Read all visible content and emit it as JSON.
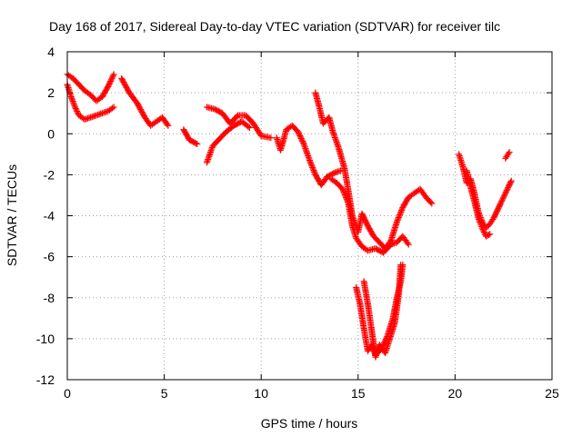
{
  "chart_data": {
    "type": "scatter",
    "title": "Day 168 of 2017, Sidereal Day-to-day VTEC variation (SDTVAR) for receiver tilc",
    "xlabel": "GPS time / hours",
    "ylabel": "SDTVAR / TECUs",
    "xlim": [
      0,
      25
    ],
    "ylim": [
      -12,
      4
    ],
    "xticks": [
      0,
      5,
      10,
      15,
      20,
      25
    ],
    "yticks": [
      4,
      2,
      0,
      -2,
      -4,
      -6,
      -8,
      -10,
      -12
    ],
    "grid": true,
    "marker": "plus",
    "color": "#ff0000",
    "series": [
      {
        "segments": [
          [
            [
              0.0,
              2.9
            ],
            [
              0.3,
              2.7
            ],
            [
              0.6,
              2.4
            ],
            [
              0.9,
              2.1
            ],
            [
              1.2,
              1.9
            ],
            [
              1.5,
              1.6
            ],
            [
              1.8,
              1.8
            ],
            [
              2.1,
              2.3
            ],
            [
              2.4,
              2.9
            ]
          ],
          [
            [
              0.0,
              2.4
            ],
            [
              0.2,
              1.8
            ],
            [
              0.4,
              1.3
            ],
            [
              0.6,
              0.9
            ],
            [
              0.9,
              0.7
            ],
            [
              1.2,
              0.8
            ],
            [
              1.5,
              0.9
            ],
            [
              1.8,
              1.0
            ],
            [
              2.1,
              1.1
            ],
            [
              2.4,
              1.3
            ]
          ],
          [
            [
              2.8,
              2.7
            ],
            [
              3.2,
              2.0
            ],
            [
              3.6,
              1.5
            ],
            [
              4.0,
              0.8
            ],
            [
              4.3,
              0.4
            ],
            [
              4.6,
              0.6
            ],
            [
              4.9,
              0.8
            ],
            [
              5.2,
              0.4
            ]
          ],
          [
            [
              6.0,
              0.2
            ],
            [
              6.3,
              -0.3
            ],
            [
              6.7,
              -0.5
            ]
          ],
          [
            [
              7.2,
              1.3
            ],
            [
              7.6,
              1.2
            ],
            [
              8.0,
              1.0
            ],
            [
              8.4,
              0.5
            ],
            [
              8.8,
              0.9
            ],
            [
              9.2,
              0.9
            ],
            [
              9.6,
              0.5
            ],
            [
              10.0,
              -0.1
            ],
            [
              10.5,
              -0.2
            ]
          ],
          [
            [
              7.2,
              -1.4
            ],
            [
              7.5,
              -0.6
            ],
            [
              7.9,
              -0.2
            ],
            [
              8.2,
              0.1
            ],
            [
              8.6,
              0.4
            ],
            [
              9.0,
              0.6
            ],
            [
              9.4,
              0.3
            ]
          ],
          [
            [
              10.8,
              -0.2
            ],
            [
              11.0,
              -0.8
            ],
            [
              11.3,
              0.2
            ],
            [
              11.6,
              0.4
            ],
            [
              11.9,
              0.1
            ],
            [
              12.2,
              -0.5
            ],
            [
              12.5,
              -1.3
            ],
            [
              12.8,
              -2.0
            ],
            [
              13.1,
              -2.5
            ],
            [
              13.4,
              -2.1
            ],
            [
              13.8,
              -1.9
            ],
            [
              14.1,
              -1.8
            ]
          ],
          [
            [
              12.8,
              2.0
            ],
            [
              13.0,
              1.3
            ],
            [
              13.2,
              0.5
            ],
            [
              13.5,
              0.8
            ],
            [
              13.7,
              0.1
            ],
            [
              14.0,
              -0.7
            ],
            [
              14.3,
              -1.7
            ],
            [
              14.5,
              -2.8
            ],
            [
              14.7,
              -4.0
            ],
            [
              15.0,
              -4.8
            ],
            [
              15.2,
              -3.9
            ],
            [
              15.5,
              -4.5
            ],
            [
              15.8,
              -5.0
            ],
            [
              16.1,
              -5.3
            ],
            [
              16.4,
              -5.6
            ],
            [
              16.7,
              -5.2
            ],
            [
              17.0,
              -4.3
            ],
            [
              17.3,
              -3.6
            ],
            [
              17.6,
              -3.1
            ],
            [
              17.9,
              -2.9
            ],
            [
              18.2,
              -2.7
            ],
            [
              18.5,
              -3.1
            ],
            [
              18.8,
              -3.4
            ]
          ],
          [
            [
              13.6,
              -2.2
            ],
            [
              13.9,
              -2.4
            ],
            [
              14.2,
              -2.7
            ],
            [
              14.5,
              -3.4
            ],
            [
              14.7,
              -4.5
            ],
            [
              14.9,
              -5.1
            ],
            [
              15.2,
              -5.5
            ],
            [
              15.5,
              -5.7
            ],
            [
              15.9,
              -5.6
            ],
            [
              16.3,
              -5.8
            ],
            [
              16.7,
              -5.4
            ],
            [
              17.0,
              -5.3
            ],
            [
              17.3,
              -5.0
            ],
            [
              17.6,
              -5.4
            ]
          ],
          [
            [
              14.9,
              -7.5
            ],
            [
              15.1,
              -8.3
            ],
            [
              15.3,
              -9.5
            ],
            [
              15.5,
              -10.6
            ],
            [
              15.7,
              -10.3
            ],
            [
              15.9,
              -10.8
            ],
            [
              16.2,
              -10.5
            ],
            [
              16.5,
              -9.9
            ],
            [
              16.8,
              -9.0
            ],
            [
              17.0,
              -8.0
            ],
            [
              17.2,
              -7.2
            ],
            [
              17.3,
              -6.4
            ]
          ],
          [
            [
              15.3,
              -7.2
            ],
            [
              15.5,
              -8.3
            ],
            [
              15.7,
              -9.6
            ],
            [
              15.9,
              -10.9
            ],
            [
              16.1,
              -10.3
            ],
            [
              16.4,
              -10.7
            ],
            [
              16.6,
              -10.1
            ],
            [
              16.9,
              -9.2
            ],
            [
              17.1,
              -7.8
            ],
            [
              17.2,
              -6.4
            ]
          ],
          [
            [
              20.2,
              -1.0
            ],
            [
              20.4,
              -1.6
            ],
            [
              20.6,
              -2.4
            ],
            [
              20.8,
              -2.2
            ],
            [
              21.0,
              -2.9
            ],
            [
              21.2,
              -3.8
            ],
            [
              21.4,
              -4.3
            ],
            [
              21.6,
              -4.6
            ],
            [
              21.8,
              -4.4
            ],
            [
              22.0,
              -4.1
            ],
            [
              22.3,
              -3.5
            ],
            [
              22.6,
              -2.9
            ],
            [
              22.9,
              -2.3
            ]
          ],
          [
            [
              20.6,
              -1.8
            ],
            [
              20.8,
              -2.6
            ],
            [
              21.0,
              -3.3
            ],
            [
              21.2,
              -4.1
            ],
            [
              21.4,
              -4.6
            ],
            [
              21.6,
              -5.0
            ],
            [
              21.8,
              -4.9
            ]
          ],
          [
            [
              22.6,
              -1.2
            ],
            [
              22.8,
              -0.9
            ]
          ]
        ]
      }
    ]
  }
}
